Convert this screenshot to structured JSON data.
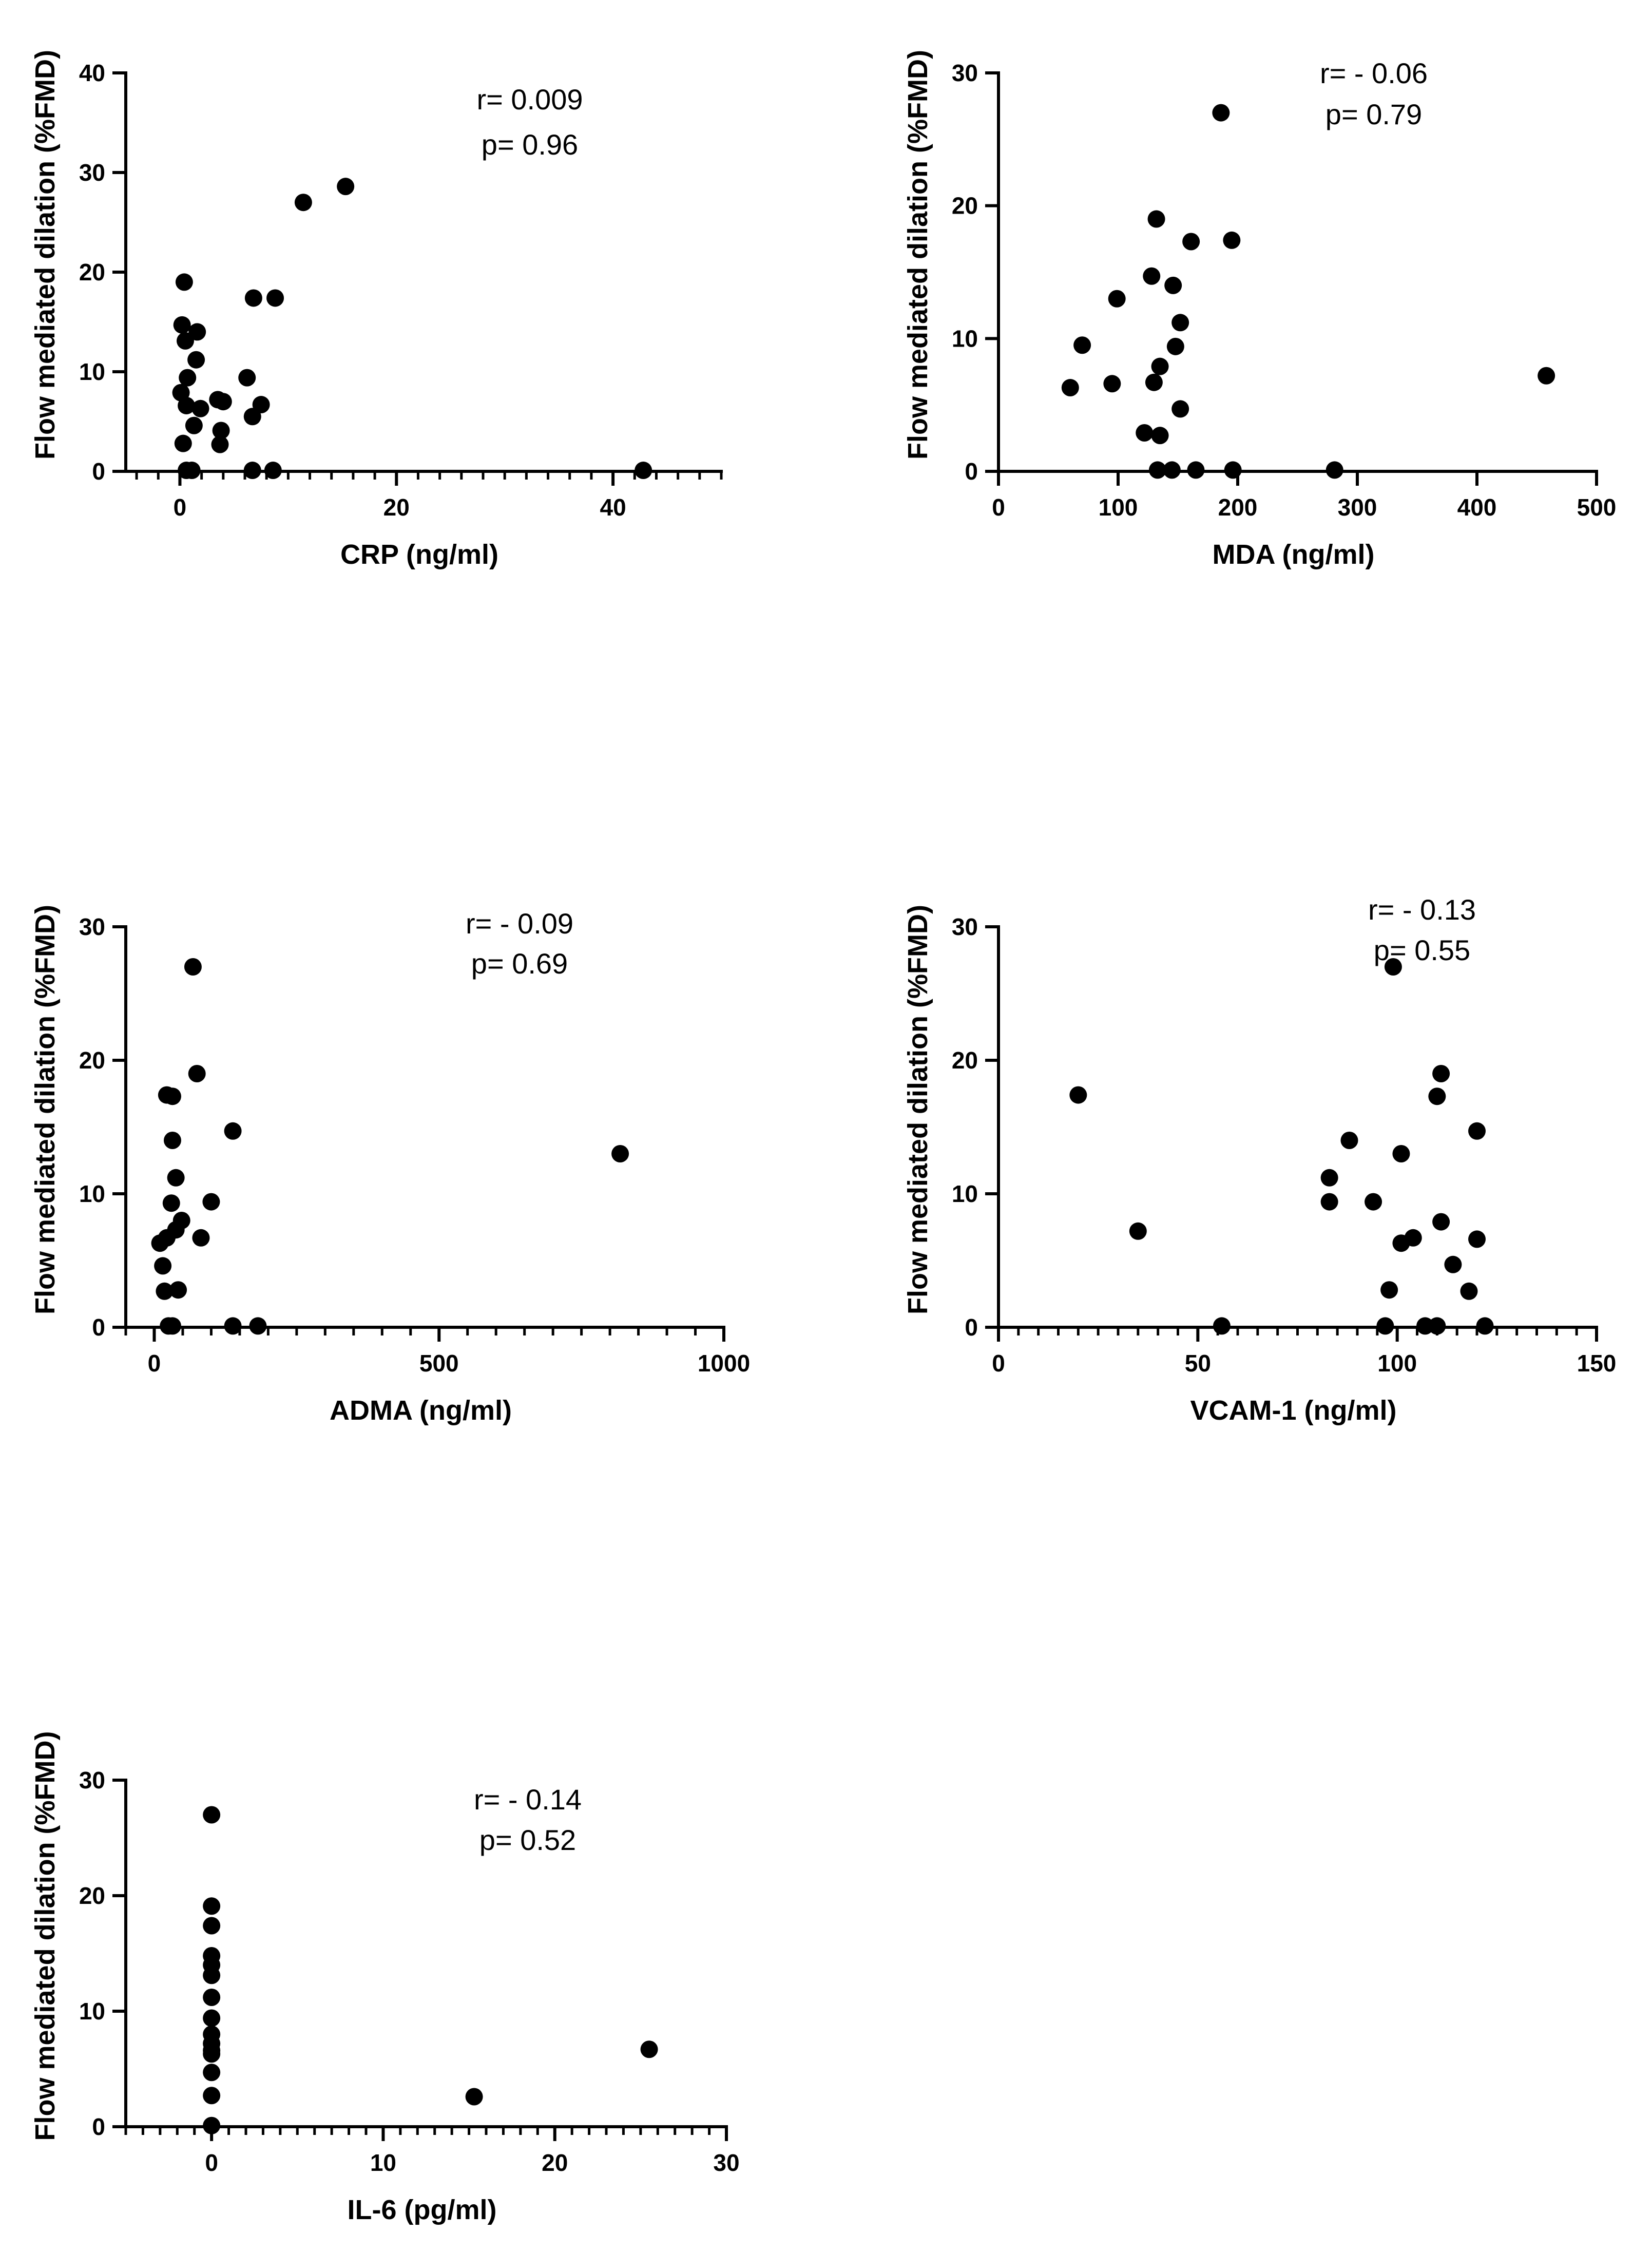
{
  "colors": {
    "points": "#000000",
    "axes": "#000000",
    "background": "#ffffff"
  },
  "chart_data": [
    {
      "type": "scatter",
      "xlabel": "CRP (ng/ml)",
      "ylabel": "Flow mediated dilation (%FMD)",
      "xlim": [
        -5,
        50
      ],
      "ylim": [
        0,
        40
      ],
      "xticks": [
        0,
        20,
        40
      ],
      "xtick_labels": [
        "0",
        "20",
        "40"
      ],
      "yticks": [
        0,
        10,
        20,
        30,
        40
      ],
      "ytick_labels": [
        "0",
        "10",
        "20",
        "30",
        "40"
      ],
      "x_minor_step": 2,
      "annotation": [
        "r= 0.009",
        "p= 0.96"
      ],
      "points": [
        [
          0.4,
          19.0
        ],
        [
          0.2,
          14.7
        ],
        [
          1.6,
          14.0
        ],
        [
          0.5,
          13.1
        ],
        [
          1.5,
          11.2
        ],
        [
          0.7,
          9.4
        ],
        [
          0.1,
          7.9
        ],
        [
          0.6,
          6.6
        ],
        [
          1.9,
          6.3
        ],
        [
          1.3,
          4.6
        ],
        [
          0.3,
          2.8
        ],
        [
          3.5,
          7.2
        ],
        [
          4.0,
          7.0
        ],
        [
          3.8,
          4.1
        ],
        [
          3.7,
          2.7
        ],
        [
          6.8,
          17.4
        ],
        [
          8.8,
          17.4
        ],
        [
          6.2,
          9.4
        ],
        [
          7.5,
          6.7
        ],
        [
          6.7,
          5.5
        ],
        [
          6.7,
          0.1
        ],
        [
          8.6,
          0.1
        ],
        [
          0.6,
          0.1
        ],
        [
          1.1,
          0.1
        ],
        [
          11.4,
          27.0
        ],
        [
          15.3,
          28.6
        ],
        [
          42.8,
          0.1
        ]
      ]
    },
    {
      "type": "scatter",
      "xlabel": "MDA (ng/ml)",
      "ylabel": "Flow mediated dilation (%FMD)",
      "xlim": [
        0,
        500
      ],
      "ylim": [
        0,
        30
      ],
      "xticks": [
        0,
        100,
        200,
        300,
        400,
        500
      ],
      "xtick_labels": [
        "0",
        "100",
        "200",
        "300",
        "400",
        "500"
      ],
      "yticks": [
        0,
        10,
        20,
        30
      ],
      "ytick_labels": [
        "0",
        "10",
        "20",
        "30"
      ],
      "x_minor_step": null,
      "annotation": [
        "r= - 0.06",
        "p= 0.79"
      ],
      "points": [
        [
          186,
          27.0
        ],
        [
          132,
          19.0
        ],
        [
          161,
          17.3
        ],
        [
          195,
          17.4
        ],
        [
          128,
          14.7
        ],
        [
          146,
          14.0
        ],
        [
          99,
          13.0
        ],
        [
          152,
          11.2
        ],
        [
          70,
          9.5
        ],
        [
          148,
          9.4
        ],
        [
          135,
          7.9
        ],
        [
          130,
          6.7
        ],
        [
          95,
          6.6
        ],
        [
          60,
          6.3
        ],
        [
          152,
          4.7
        ],
        [
          122,
          2.9
        ],
        [
          135,
          2.7
        ],
        [
          133,
          0.1
        ],
        [
          145,
          0.1
        ],
        [
          165,
          0.1
        ],
        [
          196,
          0.1
        ],
        [
          281,
          0.1
        ],
        [
          458,
          7.2
        ]
      ]
    },
    {
      "type": "scatter",
      "xlabel": "ADMA (ng/ml)",
      "ylabel": "Flow mediated dilation (%FMD)",
      "xlim": [
        -50,
        1000
      ],
      "ylim": [
        0,
        30
      ],
      "xticks": [
        0,
        500,
        1000
      ],
      "xtick_labels": [
        "0",
        "500",
        "1000"
      ],
      "yticks": [
        0,
        10,
        20,
        30
      ],
      "ytick_labels": [
        "0",
        "10",
        "20",
        "30"
      ],
      "x_minor_step": 50,
      "annotation": [
        "r= - 0.09",
        "p= 0.69"
      ],
      "points": [
        [
          68,
          27.0
        ],
        [
          75,
          19.0
        ],
        [
          22,
          17.4
        ],
        [
          32,
          17.3
        ],
        [
          138,
          14.7
        ],
        [
          32,
          14.0
        ],
        [
          38,
          11.2
        ],
        [
          100,
          9.4
        ],
        [
          30,
          9.3
        ],
        [
          48,
          8.0
        ],
        [
          38,
          7.3
        ],
        [
          22,
          6.7
        ],
        [
          82,
          6.7
        ],
        [
          10,
          6.3
        ],
        [
          15,
          4.6
        ],
        [
          42,
          2.8
        ],
        [
          18,
          2.7
        ],
        [
          25,
          0.1
        ],
        [
          32,
          0.1
        ],
        [
          138,
          0.1
        ],
        [
          182,
          0.1
        ],
        [
          818,
          13.0
        ]
      ]
    },
    {
      "type": "scatter",
      "xlabel": "VCAM-1 (ng/ml)",
      "ylabel": "Flow mediated dilation (%FMD)",
      "xlim": [
        0,
        150
      ],
      "ylim": [
        0,
        30
      ],
      "xticks": [
        0,
        50,
        100,
        150
      ],
      "xtick_labels": [
        "0",
        "50",
        "100",
        "150"
      ],
      "yticks": [
        0,
        10,
        20,
        30
      ],
      "ytick_labels": [
        "0",
        "10",
        "20",
        "30"
      ],
      "x_minor_step": 5,
      "annotation": [
        "r= - 0.13",
        "p= 0.55"
      ],
      "points": [
        [
          99,
          27.0
        ],
        [
          111,
          19.0
        ],
        [
          20,
          17.4
        ],
        [
          110,
          17.3
        ],
        [
          120,
          14.7
        ],
        [
          88,
          14.0
        ],
        [
          101,
          13.0
        ],
        [
          83,
          11.2
        ],
        [
          83,
          9.4
        ],
        [
          94,
          9.4
        ],
        [
          111,
          7.9
        ],
        [
          35,
          7.2
        ],
        [
          104,
          6.7
        ],
        [
          120,
          6.6
        ],
        [
          101,
          6.3
        ],
        [
          114,
          4.7
        ],
        [
          98,
          2.8
        ],
        [
          118,
          2.7
        ],
        [
          56,
          0.1
        ],
        [
          97,
          0.1
        ],
        [
          107,
          0.1
        ],
        [
          110,
          0.1
        ],
        [
          122,
          0.1
        ]
      ]
    },
    {
      "type": "scatter",
      "xlabel": "IL-6 (pg/ml)",
      "ylabel": "Flow mediated dilation (%FMD)",
      "xlim": [
        -5,
        30
      ],
      "ylim": [
        0,
        30
      ],
      "xticks": [
        0,
        10,
        20,
        30
      ],
      "xtick_labels": [
        "0",
        "10",
        "20",
        "30"
      ],
      "yticks": [
        0,
        10,
        20,
        30
      ],
      "ytick_labels": [
        "0",
        "10",
        "20",
        "30"
      ],
      "x_minor_step": 1,
      "annotation": [
        "r= - 0.14",
        "p= 0.52"
      ],
      "points": [
        [
          0,
          27.0
        ],
        [
          0,
          19.1
        ],
        [
          0,
          17.4
        ],
        [
          0,
          14.8
        ],
        [
          0,
          14.0
        ],
        [
          0,
          13.1
        ],
        [
          0,
          11.2
        ],
        [
          0,
          9.4
        ],
        [
          0,
          8.0
        ],
        [
          0,
          7.2
        ],
        [
          0,
          6.6
        ],
        [
          0,
          6.3
        ],
        [
          0,
          4.7
        ],
        [
          0,
          2.7
        ],
        [
          0,
          0.1
        ],
        [
          15.3,
          2.6
        ],
        [
          25.5,
          6.7
        ]
      ]
    }
  ]
}
